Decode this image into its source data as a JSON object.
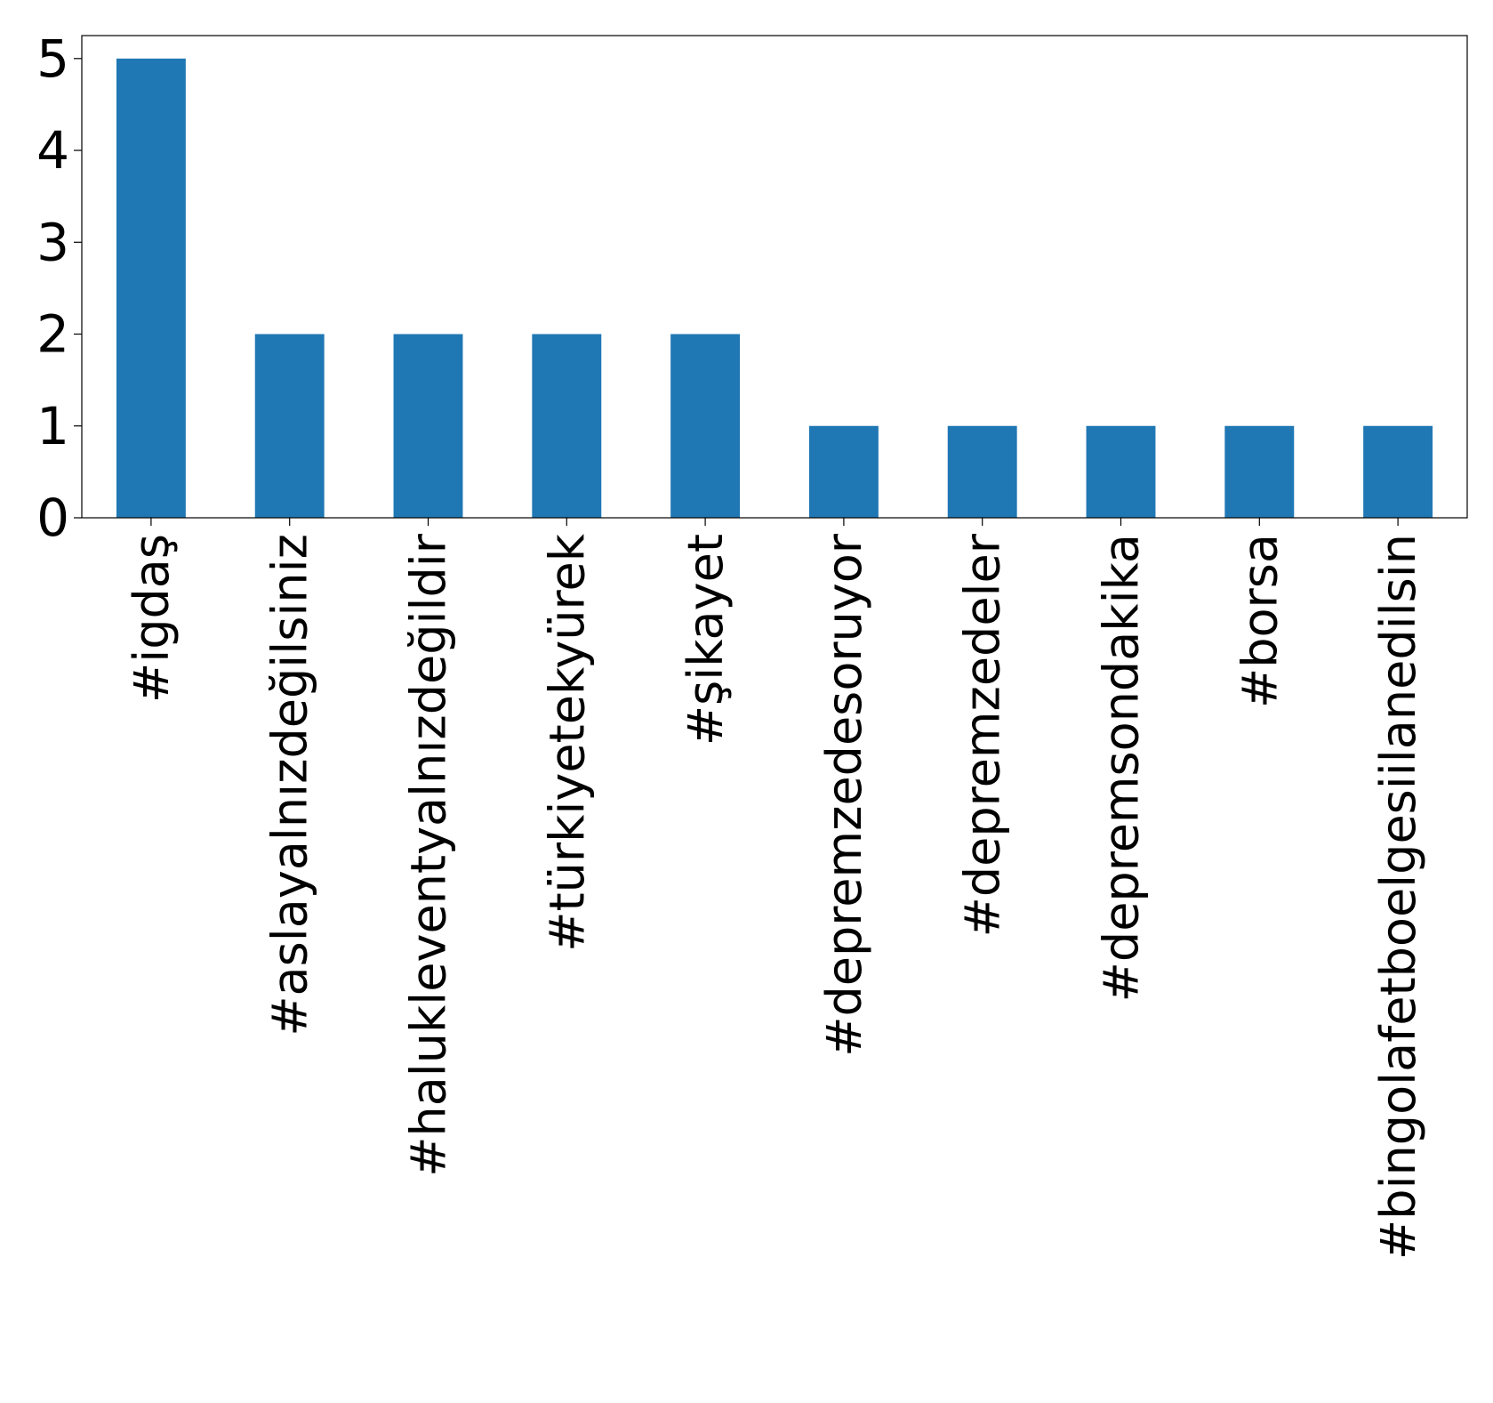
{
  "chart_data": {
    "type": "bar",
    "title": "",
    "xlabel": "",
    "ylabel": "",
    "categories": [
      "#igdaş",
      "#aslayalnızdeğilsiniz",
      "#halukleventyalnızdeğildir",
      "#türkiyetekyürek",
      "#şikayet",
      "#depremzedesoruyor",
      "#depremzedeler",
      "#depremsondakika",
      "#borsa",
      "#bingolafetboelgesiilanedilsin"
    ],
    "values": [
      5,
      2,
      2,
      2,
      2,
      1,
      1,
      1,
      1,
      1
    ],
    "ylim": [
      0,
      5.25
    ],
    "yticks": [
      "0",
      "1",
      "2",
      "3",
      "4",
      "5"
    ],
    "bar_color": "#1f77b4",
    "grid": false,
    "legend": "none"
  }
}
